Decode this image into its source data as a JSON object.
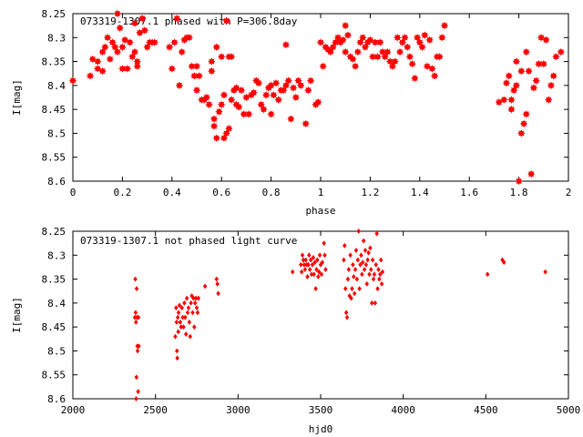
{
  "chart_data": [
    {
      "type": "scatter",
      "title": "073319-1307.1 phased with P=306.8day",
      "xlabel": "phase",
      "ylabel": "I[mag]",
      "xlim": [
        0,
        2
      ],
      "ylim": [
        8.6,
        8.25
      ],
      "y_reversed": true,
      "xticks": [
        0,
        0.2,
        0.4,
        0.6,
        0.8,
        1,
        1.2,
        1.4,
        1.6,
        1.8,
        2
      ],
      "xtick_labels": [
        "0",
        "0.2",
        "0.4",
        "0.6",
        "0.8",
        "1",
        "1.2",
        "1.4",
        "1.6",
        "1.8",
        "2"
      ],
      "yticks": [
        8.25,
        8.3,
        8.35,
        8.4,
        8.45,
        8.5,
        8.55,
        8.6
      ],
      "ytick_labels": [
        "8.25",
        "8.3",
        "8.35",
        "8.4",
        "8.45",
        "8.5",
        "8.55",
        "8.6"
      ],
      "marker_color": "#ff0000",
      "marker": "star",
      "points": [
        [
          0.0,
          8.39
        ],
        [
          0.07,
          8.38
        ],
        [
          0.08,
          8.345
        ],
        [
          0.1,
          8.35
        ],
        [
          0.1,
          8.365
        ],
        [
          0.12,
          8.37
        ],
        [
          0.12,
          8.33
        ],
        [
          0.13,
          8.32
        ],
        [
          0.14,
          8.3
        ],
        [
          0.15,
          8.345
        ],
        [
          0.16,
          8.31
        ],
        [
          0.17,
          8.32
        ],
        [
          0.18,
          8.33
        ],
        [
          0.18,
          8.25
        ],
        [
          0.19,
          8.28
        ],
        [
          0.2,
          8.32
        ],
        [
          0.2,
          8.365
        ],
        [
          0.21,
          8.305
        ],
        [
          0.22,
          8.365
        ],
        [
          0.23,
          8.31
        ],
        [
          0.24,
          8.34
        ],
        [
          0.25,
          8.33
        ],
        [
          0.25,
          8.27
        ],
        [
          0.26,
          8.35
        ],
        [
          0.26,
          8.36
        ],
        [
          0.27,
          8.29
        ],
        [
          0.28,
          8.26
        ],
        [
          0.29,
          8.285
        ],
        [
          0.3,
          8.32
        ],
        [
          0.31,
          8.31
        ],
        [
          0.32,
          8.31
        ],
        [
          0.33,
          8.31
        ],
        [
          0.39,
          8.32
        ],
        [
          0.4,
          8.365
        ],
        [
          0.41,
          8.31
        ],
        [
          0.42,
          8.26
        ],
        [
          0.43,
          8.4
        ],
        [
          0.44,
          8.33
        ],
        [
          0.45,
          8.305
        ],
        [
          0.46,
          8.3
        ],
        [
          0.47,
          8.3
        ],
        [
          0.48,
          8.36
        ],
        [
          0.49,
          8.38
        ],
        [
          0.5,
          8.36
        ],
        [
          0.5,
          8.41
        ],
        [
          0.51,
          8.38
        ],
        [
          0.52,
          8.43
        ],
        [
          0.53,
          8.43
        ],
        [
          0.54,
          8.425
        ],
        [
          0.55,
          8.44
        ],
        [
          0.56,
          8.35
        ],
        [
          0.56,
          8.37
        ],
        [
          0.57,
          8.485
        ],
        [
          0.57,
          8.47
        ],
        [
          0.58,
          8.51
        ],
        [
          0.58,
          8.32
        ],
        [
          0.59,
          8.455
        ],
        [
          0.6,
          8.44
        ],
        [
          0.6,
          8.34
        ],
        [
          0.61,
          8.51
        ],
        [
          0.61,
          8.42
        ],
        [
          0.62,
          8.5
        ],
        [
          0.62,
          8.265
        ],
        [
          0.63,
          8.49
        ],
        [
          0.63,
          8.34
        ],
        [
          0.64,
          8.43
        ],
        [
          0.64,
          8.34
        ],
        [
          0.65,
          8.41
        ],
        [
          0.66,
          8.405
        ],
        [
          0.66,
          8.44
        ],
        [
          0.67,
          8.445
        ],
        [
          0.68,
          8.41
        ],
        [
          0.69,
          8.46
        ],
        [
          0.7,
          8.425
        ],
        [
          0.71,
          8.46
        ],
        [
          0.72,
          8.42
        ],
        [
          0.73,
          8.415
        ],
        [
          0.74,
          8.39
        ],
        [
          0.75,
          8.395
        ],
        [
          0.76,
          8.44
        ],
        [
          0.77,
          8.45
        ],
        [
          0.78,
          8.42
        ],
        [
          0.79,
          8.405
        ],
        [
          0.8,
          8.4
        ],
        [
          0.8,
          8.46
        ],
        [
          0.81,
          8.42
        ],
        [
          0.82,
          8.395
        ],
        [
          0.83,
          8.43
        ],
        [
          0.84,
          8.41
        ],
        [
          0.85,
          8.41
        ],
        [
          0.86,
          8.4
        ],
        [
          0.86,
          8.315
        ],
        [
          0.87,
          8.39
        ],
        [
          0.88,
          8.47
        ],
        [
          0.89,
          8.405
        ],
        [
          0.9,
          8.425
        ],
        [
          0.91,
          8.39
        ],
        [
          0.92,
          8.4
        ],
        [
          0.94,
          8.48
        ],
        [
          0.95,
          8.41
        ],
        [
          0.96,
          8.39
        ],
        [
          0.98,
          8.44
        ],
        [
          0.99,
          8.435
        ],
        [
          1.0,
          8.31
        ],
        [
          1.01,
          8.36
        ],
        [
          1.02,
          8.32
        ],
        [
          1.03,
          8.325
        ],
        [
          1.04,
          8.33
        ],
        [
          1.05,
          8.32
        ],
        [
          1.06,
          8.31
        ],
        [
          1.07,
          8.3
        ],
        [
          1.08,
          8.31
        ],
        [
          1.09,
          8.305
        ],
        [
          1.1,
          8.275
        ],
        [
          1.1,
          8.33
        ],
        [
          1.11,
          8.295
        ],
        [
          1.12,
          8.34
        ],
        [
          1.13,
          8.345
        ],
        [
          1.14,
          8.36
        ],
        [
          1.15,
          8.33
        ],
        [
          1.16,
          8.31
        ],
        [
          1.17,
          8.3
        ],
        [
          1.18,
          8.32
        ],
        [
          1.19,
          8.31
        ],
        [
          1.2,
          8.305
        ],
        [
          1.21,
          8.34
        ],
        [
          1.22,
          8.31
        ],
        [
          1.23,
          8.34
        ],
        [
          1.24,
          8.31
        ],
        [
          1.25,
          8.33
        ],
        [
          1.26,
          8.34
        ],
        [
          1.27,
          8.33
        ],
        [
          1.28,
          8.35
        ],
        [
          1.29,
          8.36
        ],
        [
          1.3,
          8.35
        ],
        [
          1.31,
          8.3
        ],
        [
          1.32,
          8.33
        ],
        [
          1.33,
          8.31
        ],
        [
          1.34,
          8.3
        ],
        [
          1.35,
          8.32
        ],
        [
          1.36,
          8.34
        ],
        [
          1.37,
          8.355
        ],
        [
          1.38,
          8.385
        ],
        [
          1.39,
          8.3
        ],
        [
          1.4,
          8.31
        ],
        [
          1.41,
          8.32
        ],
        [
          1.42,
          8.295
        ],
        [
          1.43,
          8.36
        ],
        [
          1.44,
          8.305
        ],
        [
          1.45,
          8.365
        ],
        [
          1.46,
          8.38
        ],
        [
          1.47,
          8.34
        ],
        [
          1.48,
          8.34
        ],
        [
          1.49,
          8.3
        ],
        [
          1.5,
          8.275
        ],
        [
          1.72,
          8.435
        ],
        [
          1.74,
          8.43
        ],
        [
          1.75,
          8.395
        ],
        [
          1.76,
          8.38
        ],
        [
          1.77,
          8.43
        ],
        [
          1.77,
          8.45
        ],
        [
          1.78,
          8.41
        ],
        [
          1.79,
          8.4
        ],
        [
          1.79,
          8.35
        ],
        [
          1.8,
          8.6
        ],
        [
          1.81,
          8.5
        ],
        [
          1.81,
          8.37
        ],
        [
          1.82,
          8.48
        ],
        [
          1.83,
          8.46
        ],
        [
          1.83,
          8.33
        ],
        [
          1.84,
          8.37
        ],
        [
          1.85,
          8.585
        ],
        [
          1.86,
          8.405
        ],
        [
          1.87,
          8.39
        ],
        [
          1.88,
          8.355
        ],
        [
          1.89,
          8.3
        ],
        [
          1.9,
          8.355
        ],
        [
          1.91,
          8.305
        ],
        [
          1.92,
          8.43
        ],
        [
          1.93,
          8.4
        ],
        [
          1.94,
          8.38
        ],
        [
          1.95,
          8.34
        ],
        [
          1.97,
          8.33
        ]
      ]
    },
    {
      "type": "scatter",
      "title": "073319-1307.1 not phased light curve",
      "xlabel": "hjd0",
      "ylabel": "I[mag]",
      "xlim": [
        2000,
        5000
      ],
      "ylim": [
        8.6,
        8.25
      ],
      "y_reversed": true,
      "xticks": [
        2000,
        2500,
        3000,
        3500,
        4000,
        4500,
        5000
      ],
      "xtick_labels": [
        "2000",
        "2500",
        "3000",
        "3500",
        "4000",
        "4500",
        "5000"
      ],
      "yticks": [
        8.25,
        8.3,
        8.35,
        8.4,
        8.45,
        8.5,
        8.55,
        8.6
      ],
      "ytick_labels": [
        "8.25",
        "8.3",
        "8.35",
        "8.4",
        "8.45",
        "8.5",
        "8.55",
        "8.6"
      ],
      "marker_color": "#ff0000",
      "marker": "diamond",
      "points": [
        [
          2375,
          8.43
        ],
        [
          2378,
          8.35
        ],
        [
          2380,
          8.42
        ],
        [
          2382,
          8.44
        ],
        [
          2383,
          8.6
        ],
        [
          2385,
          8.555
        ],
        [
          2386,
          8.37
        ],
        [
          2388,
          8.43
        ],
        [
          2390,
          8.49
        ],
        [
          2392,
          8.5
        ],
        [
          2395,
          8.585
        ],
        [
          2397,
          8.43
        ],
        [
          2399,
          8.49
        ],
        [
          2620,
          8.47
        ],
        [
          2625,
          8.41
        ],
        [
          2628,
          8.44
        ],
        [
          2630,
          8.5
        ],
        [
          2632,
          8.515
        ],
        [
          2635,
          8.43
        ],
        [
          2638,
          8.46
        ],
        [
          2640,
          8.42
        ],
        [
          2645,
          8.405
        ],
        [
          2650,
          8.44
        ],
        [
          2655,
          8.45
        ],
        [
          2660,
          8.41
        ],
        [
          2665,
          8.43
        ],
        [
          2670,
          8.45
        ],
        [
          2675,
          8.4
        ],
        [
          2680,
          8.43
        ],
        [
          2685,
          8.465
        ],
        [
          2690,
          8.39
        ],
        [
          2695,
          8.42
        ],
        [
          2700,
          8.41
        ],
        [
          2705,
          8.44
        ],
        [
          2710,
          8.47
        ],
        [
          2715,
          8.4
        ],
        [
          2720,
          8.385
        ],
        [
          2725,
          8.42
        ],
        [
          2730,
          8.39
        ],
        [
          2735,
          8.45
        ],
        [
          2740,
          8.4
        ],
        [
          2745,
          8.39
        ],
        [
          2750,
          8.41
        ],
        [
          2755,
          8.42
        ],
        [
          2760,
          8.39
        ],
        [
          2800,
          8.365
        ],
        [
          2870,
          8.35
        ],
        [
          2875,
          8.36
        ],
        [
          2880,
          8.38
        ],
        [
          3330,
          8.335
        ],
        [
          3380,
          8.32
        ],
        [
          3385,
          8.335
        ],
        [
          3390,
          8.3
        ],
        [
          3395,
          8.31
        ],
        [
          3400,
          8.32
        ],
        [
          3405,
          8.33
        ],
        [
          3410,
          8.31
        ],
        [
          3415,
          8.32
        ],
        [
          3420,
          8.345
        ],
        [
          3425,
          8.32
        ],
        [
          3430,
          8.3
        ],
        [
          3435,
          8.33
        ],
        [
          3440,
          8.31
        ],
        [
          3445,
          8.34
        ],
        [
          3450,
          8.32
        ],
        [
          3455,
          8.305
        ],
        [
          3460,
          8.34
        ],
        [
          3465,
          8.315
        ],
        [
          3470,
          8.37
        ],
        [
          3475,
          8.33
        ],
        [
          3480,
          8.31
        ],
        [
          3485,
          8.345
        ],
        [
          3490,
          8.335
        ],
        [
          3495,
          8.3
        ],
        [
          3500,
          8.32
        ],
        [
          3505,
          8.34
        ],
        [
          3510,
          8.315
        ],
        [
          3520,
          8.275
        ],
        [
          3525,
          8.3
        ],
        [
          3530,
          8.33
        ],
        [
          3640,
          8.31
        ],
        [
          3645,
          8.28
        ],
        [
          3650,
          8.37
        ],
        [
          3655,
          8.42
        ],
        [
          3660,
          8.43
        ],
        [
          3665,
          8.35
        ],
        [
          3670,
          8.33
        ],
        [
          3675,
          8.385
        ],
        [
          3680,
          8.3
        ],
        [
          3685,
          8.39
        ],
        [
          3690,
          8.37
        ],
        [
          3695,
          8.32
        ],
        [
          3700,
          8.345
        ],
        [
          3705,
          8.38
        ],
        [
          3710,
          8.33
        ],
        [
          3715,
          8.29
        ],
        [
          3720,
          8.35
        ],
        [
          3725,
          8.31
        ],
        [
          3730,
          8.25
        ],
        [
          3735,
          8.37
        ],
        [
          3740,
          8.32
        ],
        [
          3745,
          8.3
        ],
        [
          3750,
          8.34
        ],
        [
          3755,
          8.315
        ],
        [
          3760,
          8.27
        ],
        [
          3765,
          8.33
        ],
        [
          3770,
          8.29
        ],
        [
          3775,
          8.32
        ],
        [
          3780,
          8.36
        ],
        [
          3785,
          8.31
        ],
        [
          3790,
          8.295
        ],
        [
          3795,
          8.34
        ],
        [
          3800,
          8.285
        ],
        [
          3805,
          8.33
        ],
        [
          3810,
          8.4
        ],
        [
          3815,
          8.31
        ],
        [
          3820,
          8.35
        ],
        [
          3825,
          8.34
        ],
        [
          3830,
          8.4
        ],
        [
          3835,
          8.32
        ],
        [
          3840,
          8.255
        ],
        [
          3845,
          8.37
        ],
        [
          3850,
          8.33
        ],
        [
          3855,
          8.35
        ],
        [
          3860,
          8.34
        ],
        [
          3865,
          8.31
        ],
        [
          3870,
          8.36
        ],
        [
          3875,
          8.335
        ],
        [
          4510,
          8.34
        ],
        [
          4600,
          8.31
        ],
        [
          4610,
          8.315
        ],
        [
          4860,
          8.335
        ]
      ]
    }
  ]
}
